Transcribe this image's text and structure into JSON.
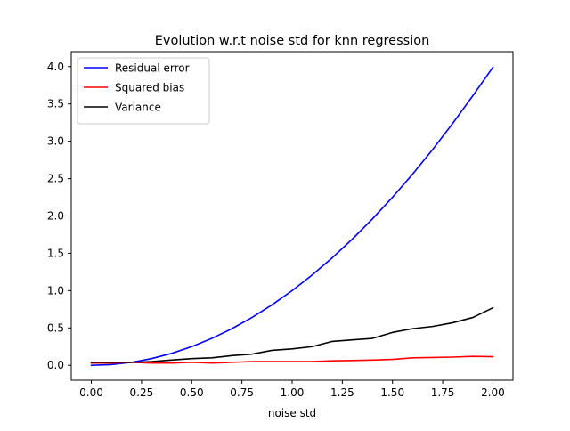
{
  "chart_data": {
    "type": "line",
    "title": "Evolution w.r.t noise std for knn regression",
    "xlabel": "noise std",
    "ylabel": "",
    "xlim": [
      -0.1,
      2.1
    ],
    "ylim": [
      -0.2,
      4.2
    ],
    "xticks": [
      0.0,
      0.25,
      0.5,
      0.75,
      1.0,
      1.25,
      1.5,
      1.75,
      2.0
    ],
    "xtick_labels": [
      "0.00",
      "0.25",
      "0.50",
      "0.75",
      "1.00",
      "1.25",
      "1.50",
      "1.75",
      "2.00"
    ],
    "yticks": [
      0.0,
      0.5,
      1.0,
      1.5,
      2.0,
      2.5,
      3.0,
      3.5,
      4.0
    ],
    "ytick_labels": [
      "0.0",
      "0.5",
      "1.0",
      "1.5",
      "2.0",
      "2.5",
      "3.0",
      "3.5",
      "4.0"
    ],
    "grid": false,
    "legend_position": "top-left",
    "x": [
      0.0,
      0.1,
      0.2,
      0.3,
      0.4,
      0.5,
      0.6,
      0.7,
      0.8,
      0.9,
      1.0,
      1.1,
      1.2,
      1.3,
      1.4,
      1.5,
      1.6,
      1.7,
      1.8,
      1.9,
      2.0
    ],
    "series": [
      {
        "name": "Residual error",
        "color": "#0000ff",
        "values": [
          0.0,
          0.01,
          0.04,
          0.09,
          0.16,
          0.25,
          0.36,
          0.49,
          0.64,
          0.81,
          1.0,
          1.21,
          1.44,
          1.69,
          1.96,
          2.25,
          2.56,
          2.89,
          3.24,
          3.61,
          3.99
        ]
      },
      {
        "name": "Squared bias",
        "color": "#ff0000",
        "values": [
          0.03,
          0.03,
          0.04,
          0.03,
          0.03,
          0.04,
          0.03,
          0.04,
          0.05,
          0.05,
          0.05,
          0.05,
          0.06,
          0.065,
          0.07,
          0.08,
          0.1,
          0.105,
          0.11,
          0.12,
          0.115
        ]
      },
      {
        "name": "Variance",
        "color": "#000000",
        "values": [
          0.04,
          0.04,
          0.04,
          0.05,
          0.07,
          0.09,
          0.1,
          0.13,
          0.15,
          0.2,
          0.22,
          0.25,
          0.32,
          0.34,
          0.36,
          0.44,
          0.49,
          0.52,
          0.57,
          0.64,
          0.77
        ]
      }
    ]
  }
}
